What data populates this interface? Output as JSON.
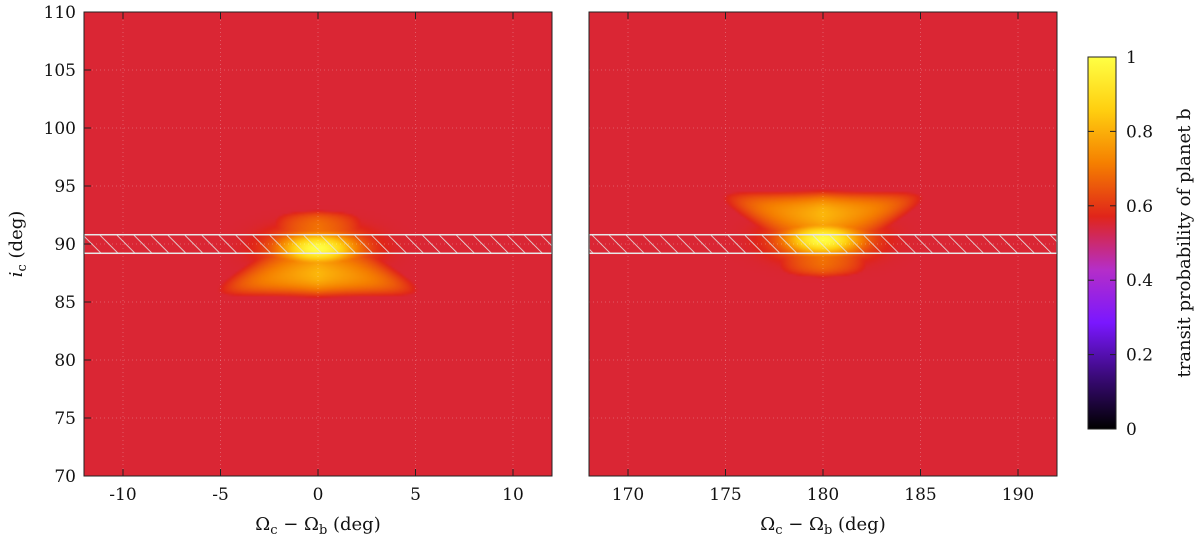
{
  "chart_data": [
    {
      "type": "heatmap",
      "panel": "left",
      "x_range": [
        -12,
        12
      ],
      "y_range": [
        70,
        110
      ],
      "x_center": 0,
      "x_ticks": [
        -10,
        -5,
        0,
        5,
        10
      ],
      "x_tick_labels": [
        "-10",
        "-5",
        "0",
        "5",
        "10"
      ],
      "y_ticks": [
        70,
        75,
        80,
        85,
        90,
        95,
        100,
        105,
        110
      ],
      "y_tick_labels": [
        "70",
        "75",
        "80",
        "85",
        "90",
        "95",
        "100",
        "105",
        "110"
      ],
      "xlabel": "Ωc − Ωb (deg)",
      "ylabel": "ic (deg)",
      "hatched_band_y": [
        89.2,
        90.8
      ],
      "peak": {
        "x": 0,
        "y": 89.5,
        "value": 1.0
      },
      "grid": true
    },
    {
      "type": "heatmap",
      "panel": "right",
      "x_range": [
        168,
        192
      ],
      "y_range": [
        70,
        110
      ],
      "x_center": 180,
      "x_ticks": [
        170,
        175,
        180,
        185,
        190
      ],
      "x_tick_labels": [
        "170",
        "175",
        "180",
        "185",
        "190"
      ],
      "xlabel": "Ωc − Ωb (deg)",
      "hatched_band_y": [
        89.2,
        90.8
      ],
      "peak": {
        "x": 180,
        "y": 90.5,
        "value": 1.0
      },
      "grid": true
    }
  ],
  "colorbar": {
    "label": "transit probability of planet b",
    "range": [
      0,
      1
    ],
    "ticks": [
      0,
      0.2,
      0.4,
      0.6,
      0.8,
      1
    ],
    "tick_labels": [
      "0",
      "0.2",
      "0.4",
      "0.6",
      "0.8",
      "1"
    ],
    "palette": [
      "#000000",
      "#3b0a7a",
      "#7a17ff",
      "#b52ec8",
      "#e0251a",
      "#f57f00",
      "#ffcf10",
      "#ffff44"
    ]
  },
  "labels": {
    "y_title_italic": "i",
    "y_title_sub": "c",
    "y_title_rest": " (deg)",
    "x_title_omega_c": "Ω",
    "x_title_sub_c": "c",
    "x_title_minus": " − Ω",
    "x_title_sub_b": "b",
    "x_title_rest": " (deg)"
  }
}
